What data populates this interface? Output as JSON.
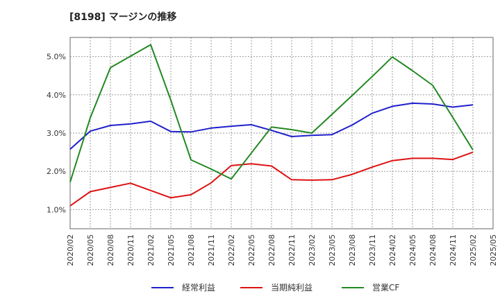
{
  "chart_data": {
    "type": "line",
    "title": "[8198]  マージンの推移",
    "x": [
      "2020/02",
      "2020/05",
      "2020/08",
      "2020/11",
      "2021/02",
      "2021/05",
      "2021/08",
      "2021/11",
      "2022/02",
      "2022/05",
      "2022/08",
      "2022/11",
      "2023/02",
      "2023/05",
      "2023/08",
      "2023/11",
      "2024/02",
      "2024/05",
      "2024/08",
      "2024/11",
      "2025/02"
    ],
    "x_ticks": [
      "2020/02",
      "2020/05",
      "2020/08",
      "2020/11",
      "2021/02",
      "2021/05",
      "2021/08",
      "2021/11",
      "2022/02",
      "2022/05",
      "2022/08",
      "2022/11",
      "2023/02",
      "2023/05",
      "2023/08",
      "2023/11",
      "2024/02",
      "2024/05",
      "2024/08",
      "2024/11",
      "2025/02",
      "2025/05"
    ],
    "y_ticks": [
      "1.0%",
      "2.0%",
      "3.0%",
      "4.0%",
      "5.0%"
    ],
    "ylim": [
      0.5,
      5.5
    ],
    "grid": true,
    "legend_position": "bottom",
    "series": [
      {
        "name": "経常利益",
        "color": "#1f1fcc",
        "values": [
          2.58,
          3.05,
          3.2,
          3.24,
          3.31,
          3.04,
          3.03,
          3.13,
          3.18,
          3.22,
          3.07,
          2.91,
          2.94,
          2.96,
          3.21,
          3.52,
          3.7,
          3.78,
          3.76,
          3.68,
          3.74
        ]
      },
      {
        "name": "当期純利益",
        "color": "#dd1111",
        "values": [
          1.1,
          1.47,
          1.58,
          1.69,
          1.5,
          1.31,
          1.39,
          1.7,
          2.15,
          2.2,
          2.14,
          1.78,
          1.77,
          1.78,
          1.92,
          2.11,
          2.28,
          2.34,
          2.34,
          2.31,
          2.5
        ]
      },
      {
        "name": "営業CF",
        "color": "#228822",
        "values": [
          1.72,
          3.4,
          4.71,
          5.01,
          5.31,
          3.86,
          2.3,
          2.06,
          1.8,
          2.48,
          3.16,
          3.09,
          3.0,
          3.49,
          3.98,
          4.48,
          4.99,
          4.63,
          4.25,
          3.41,
          2.56
        ]
      }
    ]
  }
}
